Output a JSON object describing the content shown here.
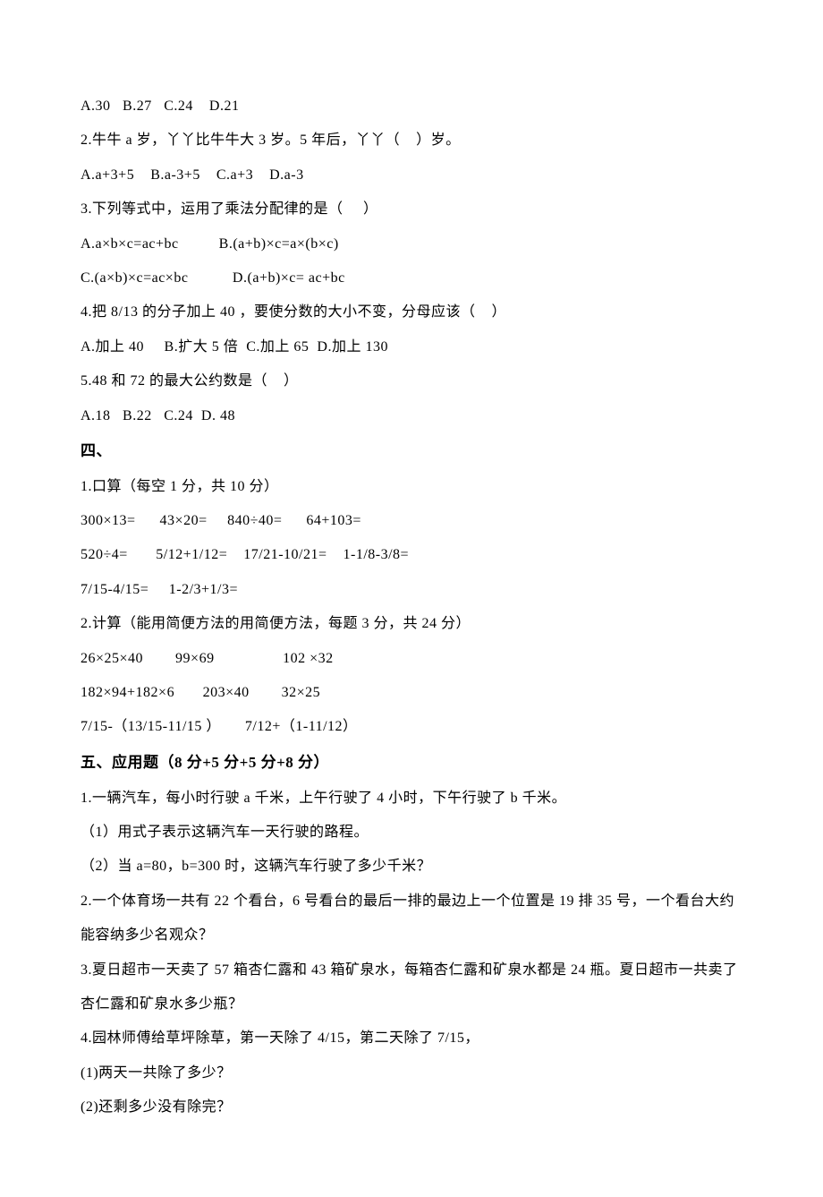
{
  "lines": {
    "l1": "A.30   B.27   C.24    D.21",
    "l2": "2.牛牛 a 岁，丫丫比牛牛大 3 岁。5 年后，丫丫（    ）岁。",
    "l3": "A.a+3+5    B.a-3+5    C.a+3    D.a-3",
    "l4": "3.下列等式中，运用了乘法分配律的是（     ）",
    "l5": "A.a×b×c=ac+bc          B.(a+b)×c=a×(b×c)",
    "l6": "C.(a×b)×c=ac×bc           D.(a+b)×c= ac+bc",
    "l7": "4.把 8/13 的分子加上 40 ，要使分数的大小不变，分母应该（    ）",
    "l8": "A.加上 40     B.扩大 5 倍  C.加上 65  D.加上 130",
    "l9": "5.48 和 72 的最大公约数是（    ）",
    "l10": "A.18   B.22   C.24  D. 48",
    "h4": "四、",
    "l11": "1.口算（每空 1 分，共 10 分）",
    "l12": "300×13=      43×20=     840÷40=      64+103=",
    "l13": "520÷4=       5/12+1/12=    17/21-10/21=    1-1/8-3/8=",
    "l14": "7/15-4/15=     1-2/3+1/3=",
    "l15": "2.计算（能用简便方法的用简便方法，每题 3 分，共 24 分）",
    "l16": "26×25×40        99×69                 102 ×32",
    "l17": "182×94+182×6       203×40        32×25",
    "l18": "7/15-（13/15-11/15 ）      7/12+（1-11/12）",
    "h5": "五、应用题（8 分+5 分+5 分+8 分）",
    "l19": "1.一辆汽车，每小时行驶 a 千米，上午行驶了 4 小时，下午行驶了 b 千米。",
    "l20": "（1）用式子表示这辆汽车一天行驶的路程。",
    "l21": "（2）当 a=80，b=300 时，这辆汽车行驶了多少千米？",
    "l22": "2.一个体育场一共有 22 个看台，6 号看台的最后一排的最边上一个位置是 19 排 35 号，一个看台大约能容纳多少名观众？",
    "l23": "3.夏日超市一天卖了 57 箱杏仁露和 43 箱矿泉水，每箱杏仁露和矿泉水都是 24 瓶。夏日超市一共卖了杏仁露和矿泉水多少瓶？",
    "l24": "4.园林师傅给草坪除草，第一天除了 4/15，第二天除了 7/15，",
    "l25": "(1)两天一共除了多少？",
    "l26": "(2)还剩多少没有除完？"
  },
  "styles": {
    "text_color": "#000000",
    "background_color": "#ffffff",
    "body_fontsize": 16,
    "heading_fontsize": 17,
    "line_height": 2.4,
    "font_family": "SimSun"
  }
}
